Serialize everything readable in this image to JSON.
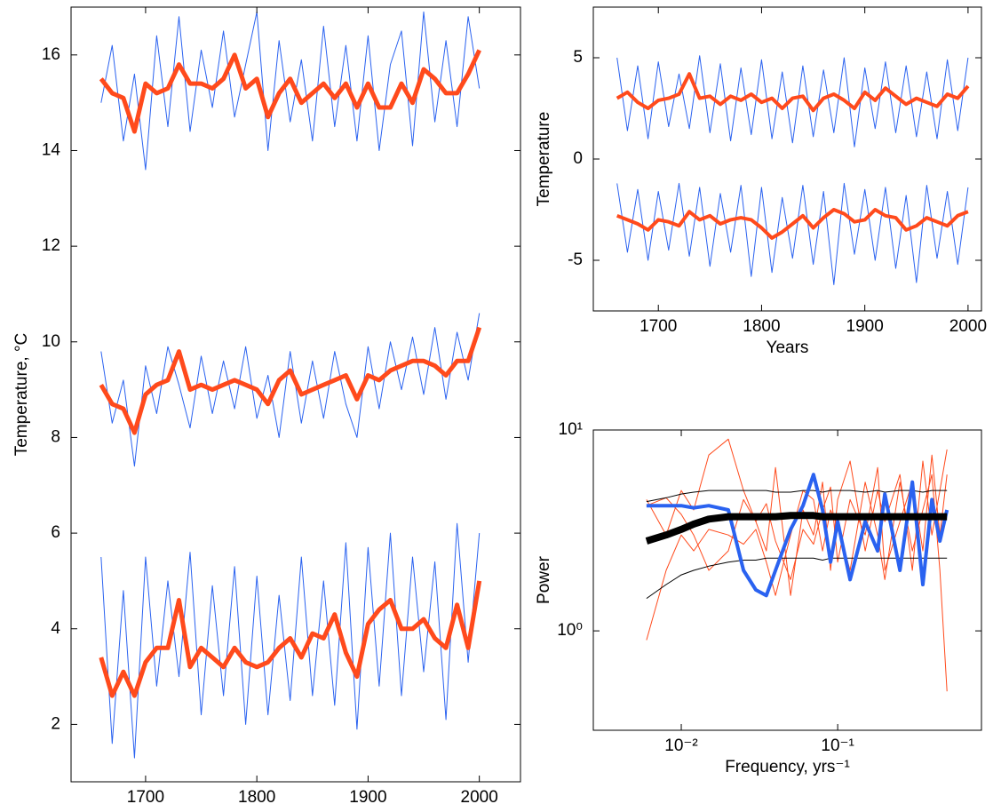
{
  "chart_data": [
    {
      "type": "line",
      "ylabel": "Temperature, °C",
      "x": [
        1660,
        1670,
        1680,
        1690,
        1700,
        1710,
        1720,
        1730,
        1740,
        1750,
        1760,
        1770,
        1780,
        1790,
        1800,
        1810,
        1820,
        1830,
        1840,
        1850,
        1860,
        1870,
        1880,
        1890,
        1900,
        1910,
        1920,
        1930,
        1940,
        1950,
        1960,
        1970,
        1980,
        1990,
        2000
      ],
      "xlim": [
        1633,
        2037
      ],
      "xticks": [
        1700,
        1800,
        1900,
        2000
      ],
      "ylim": [
        0.8,
        17
      ],
      "yticks": [
        2,
        4,
        6,
        8,
        10,
        12,
        14,
        16
      ],
      "series": [
        {
          "color": "#2a62f0",
          "linewidth": 1,
          "values": [
            15.0,
            16.2,
            14.2,
            15.6,
            13.6,
            16.4,
            14.5,
            16.8,
            14.4,
            16.1,
            14.9,
            16.5,
            14.7,
            15.8,
            16.9,
            14.0,
            16.3,
            14.6,
            15.9,
            14.2,
            16.6,
            14.5,
            16.2,
            14.2,
            16.4,
            14.0,
            15.8,
            16.5,
            14.1,
            16.9,
            14.6,
            16.3,
            14.5,
            16.8,
            15.3
          ]
        },
        {
          "color": "#2a62f0",
          "linewidth": 1,
          "values": [
            9.8,
            8.3,
            9.2,
            7.4,
            9.5,
            8.5,
            9.9,
            9.1,
            8.2,
            9.7,
            8.5,
            9.6,
            8.6,
            9.9,
            8.4,
            9.3,
            8.0,
            9.8,
            8.3,
            9.6,
            8.4,
            9.8,
            8.7,
            8.0,
            9.9,
            8.6,
            10.0,
            9.0,
            10.1,
            8.9,
            10.3,
            8.8,
            10.2,
            9.2,
            10.6
          ]
        },
        {
          "color": "#2a62f0",
          "linewidth": 1,
          "values": [
            5.5,
            1.6,
            4.8,
            1.3,
            5.5,
            2.8,
            5.0,
            3.0,
            5.6,
            2.2,
            4.9,
            2.6,
            5.3,
            2.0,
            5.1,
            2.2,
            4.7,
            2.5,
            5.5,
            2.6,
            5.0,
            2.4,
            5.8,
            1.9,
            5.7,
            2.8,
            6.0,
            2.6,
            5.5,
            3.1,
            5.4,
            2.1,
            6.2,
            3.3,
            6.0
          ]
        },
        {
          "color": "#ff4a1c",
          "linewidth": 5,
          "values": [
            15.5,
            15.2,
            15.1,
            14.4,
            15.4,
            15.2,
            15.3,
            15.8,
            15.4,
            15.4,
            15.3,
            15.5,
            16.0,
            15.3,
            15.5,
            14.7,
            15.2,
            15.5,
            15.0,
            15.2,
            15.4,
            15.1,
            15.4,
            14.9,
            15.4,
            14.9,
            14.9,
            15.4,
            15.0,
            15.7,
            15.5,
            15.2,
            15.2,
            15.6,
            16.1
          ]
        },
        {
          "color": "#ff4a1c",
          "linewidth": 5,
          "values": [
            9.1,
            8.7,
            8.6,
            8.1,
            8.9,
            9.1,
            9.2,
            9.8,
            9.0,
            9.1,
            9.0,
            9.1,
            9.2,
            9.1,
            9.0,
            8.7,
            9.2,
            9.4,
            8.9,
            9.0,
            9.1,
            9.2,
            9.3,
            8.8,
            9.3,
            9.2,
            9.4,
            9.5,
            9.6,
            9.6,
            9.5,
            9.3,
            9.6,
            9.6,
            10.3
          ]
        },
        {
          "color": "#ff4a1c",
          "linewidth": 5,
          "values": [
            3.4,
            2.6,
            3.1,
            2.6,
            3.3,
            3.6,
            3.6,
            4.6,
            3.2,
            3.6,
            3.4,
            3.2,
            3.6,
            3.3,
            3.2,
            3.3,
            3.6,
            3.8,
            3.4,
            3.9,
            3.8,
            4.3,
            3.5,
            3.0,
            4.1,
            4.4,
            4.6,
            4.0,
            4.0,
            4.2,
            3.8,
            3.6,
            4.5,
            3.6,
            5.0
          ]
        }
      ]
    },
    {
      "type": "line",
      "xlabel": "Years",
      "ylabel": "Temperature",
      "x": [
        1660,
        1670,
        1680,
        1690,
        1700,
        1710,
        1720,
        1730,
        1740,
        1750,
        1760,
        1770,
        1780,
        1790,
        1800,
        1810,
        1820,
        1830,
        1840,
        1850,
        1860,
        1870,
        1880,
        1890,
        1900,
        1910,
        1920,
        1930,
        1940,
        1950,
        1960,
        1970,
        1980,
        1990,
        2000
      ],
      "xlim": [
        1637,
        2013
      ],
      "xticks": [
        1700,
        1800,
        1900,
        2000
      ],
      "ylim": [
        -7.5,
        7.5
      ],
      "yticks": [
        -5,
        0,
        5
      ],
      "series": [
        {
          "color": "#2a62f0",
          "linewidth": 1,
          "values": [
            5.0,
            1.4,
            4.6,
            1.0,
            4.8,
            1.6,
            4.2,
            1.5,
            5.1,
            1.3,
            4.7,
            0.9,
            4.5,
            1.2,
            4.9,
            1.0,
            4.3,
            0.8,
            4.6,
            1.1,
            4.4,
            1.3,
            5.0,
            0.6,
            4.5,
            1.5,
            4.8,
            1.3,
            4.6,
            1.1,
            4.3,
            1.0,
            4.9,
            1.4,
            5.0
          ]
        },
        {
          "color": "#2a62f0",
          "linewidth": 1,
          "values": [
            -1.2,
            -4.6,
            -1.5,
            -5.0,
            -1.6,
            -4.5,
            -1.2,
            -4.8,
            -1.4,
            -5.3,
            -1.7,
            -4.6,
            -1.3,
            -5.8,
            -1.4,
            -5.6,
            -1.9,
            -4.9,
            -1.3,
            -5.2,
            -1.6,
            -6.2,
            -1.2,
            -4.7,
            -1.5,
            -5.0,
            -1.4,
            -5.4,
            -1.8,
            -6.1,
            -1.3,
            -4.9,
            -1.6,
            -5.2,
            -1.4
          ]
        },
        {
          "color": "#ff4a1c",
          "linewidth": 4,
          "values": [
            3.0,
            3.3,
            2.8,
            2.5,
            2.9,
            3.0,
            3.2,
            4.2,
            3.0,
            3.1,
            2.7,
            3.1,
            2.9,
            3.2,
            2.8,
            3.0,
            2.5,
            3.0,
            3.1,
            2.4,
            3.0,
            3.2,
            2.9,
            2.5,
            3.3,
            2.9,
            3.5,
            3.1,
            2.7,
            3.0,
            2.8,
            2.6,
            3.2,
            3.0,
            3.6
          ]
        },
        {
          "color": "#ff4a1c",
          "linewidth": 4,
          "values": [
            -2.8,
            -3.0,
            -3.2,
            -3.5,
            -3.0,
            -3.1,
            -3.3,
            -2.6,
            -3.0,
            -2.8,
            -3.2,
            -3.0,
            -2.9,
            -3.0,
            -3.4,
            -3.9,
            -3.6,
            -3.2,
            -2.8,
            -3.4,
            -2.9,
            -2.5,
            -2.7,
            -3.1,
            -3.0,
            -2.5,
            -2.8,
            -2.9,
            -3.5,
            -3.3,
            -2.9,
            -3.1,
            -3.3,
            -2.8,
            -2.6
          ]
        }
      ]
    },
    {
      "type": "line",
      "xlabel": "Frequency, yrs⁻¹",
      "ylabel": "Power",
      "xscale": "log",
      "yscale": "log",
      "x": [
        0.006,
        0.008,
        0.01,
        0.012,
        0.015,
        0.02,
        0.025,
        0.03,
        0.035,
        0.04,
        0.05,
        0.06,
        0.07,
        0.08,
        0.09,
        0.1,
        0.12,
        0.15,
        0.18,
        0.2,
        0.25,
        0.3,
        0.35,
        0.4,
        0.45,
        0.5
      ],
      "xlim": [
        0.00274,
        0.83
      ],
      "xticks": [
        {
          "value": 0.01,
          "label": "10⁻²"
        },
        {
          "value": 0.1,
          "label": "10⁻¹"
        }
      ],
      "ylim": [
        0.32,
        10
      ],
      "yticks": [
        {
          "value": 1,
          "label": "10⁰"
        },
        {
          "value": 10,
          "label": "10¹"
        }
      ],
      "series": [
        {
          "color": "#ff4a1c",
          "linewidth": 1,
          "values": [
            4.5,
            3.0,
            5.0,
            4.0,
            7.5,
            9.0,
            5.0,
            3.5,
            2.5,
            6.5,
            1.5,
            4.0,
            3.0,
            5.5,
            2.0,
            4.5,
            7.0,
            2.5,
            5.0,
            3.5,
            6.0,
            2.0,
            7.0,
            3.0,
            5.0,
            8.0
          ]
        },
        {
          "color": "#ff4a1c",
          "linewidth": 1,
          "values": [
            0.9,
            2.0,
            3.0,
            2.5,
            3.2,
            3.0,
            2.7,
            3.2,
            2.2,
            1.5,
            3.0,
            5.0,
            4.5,
            2.5,
            4.0,
            3.3,
            2.0,
            5.5,
            3.0,
            1.8,
            5.5,
            2.5,
            4.0,
            6.0,
            2.0,
            0.5
          ]
        },
        {
          "color": "#ff4a1c",
          "linewidth": 1,
          "values": [
            4.2,
            4.6,
            3.8,
            3.0,
            2.0,
            2.5,
            4.5,
            3.5,
            4.3,
            2.8,
            1.8,
            3.2,
            2.7,
            4.0,
            5.2,
            2.2,
            4.5,
            3.0,
            6.5,
            2.0,
            3.5,
            5.5,
            2.5,
            7.5,
            3.0,
            6.0
          ]
        },
        {
          "color": "#000000",
          "linewidth": 1,
          "values": [
            4.4,
            4.6,
            4.8,
            4.9,
            5.0,
            5.0,
            5.0,
            5.0,
            5.0,
            4.9,
            4.9,
            5.0,
            5.0,
            4.9,
            5.0,
            5.0,
            5.0,
            4.9,
            5.0,
            4.9,
            5.0,
            5.0,
            4.9,
            5.0,
            5.0,
            5.0
          ]
        },
        {
          "color": "#000000",
          "linewidth": 1,
          "values": [
            1.45,
            1.7,
            1.9,
            2.0,
            2.1,
            2.2,
            2.25,
            2.25,
            2.3,
            2.3,
            2.3,
            2.3,
            2.3,
            2.25,
            2.3,
            2.3,
            2.3,
            2.3,
            2.3,
            2.3,
            2.3,
            2.3,
            2.3,
            2.3,
            2.3,
            2.3
          ]
        },
        {
          "color": "#2a62f0",
          "linewidth": 4,
          "values": [
            4.2,
            4.2,
            4.2,
            4.1,
            4.2,
            4.0,
            2.0,
            1.6,
            1.5,
            2.0,
            3.2,
            4.2,
            6.0,
            4.0,
            2.2,
            3.5,
            1.8,
            3.5,
            2.5,
            4.8,
            2.0,
            5.5,
            1.7,
            4.5,
            2.8,
            4.0
          ]
        },
        {
          "color": "#000000",
          "linewidth": 8,
          "values": [
            2.8,
            3.0,
            3.2,
            3.4,
            3.6,
            3.7,
            3.7,
            3.7,
            3.7,
            3.7,
            3.75,
            3.75,
            3.75,
            3.7,
            3.7,
            3.7,
            3.7,
            3.7,
            3.7,
            3.7,
            3.7,
            3.7,
            3.7,
            3.7,
            3.7,
            3.7
          ]
        }
      ]
    }
  ]
}
